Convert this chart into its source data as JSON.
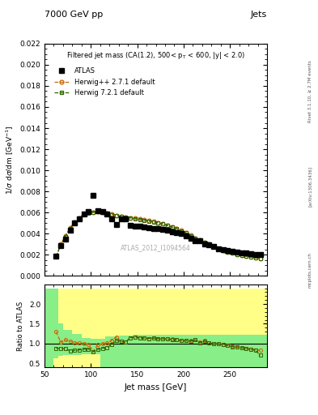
{
  "title_top": "7000 GeV pp",
  "title_right": "Jets",
  "main_title": "Filtered jet mass (CA(1.2), 500< p$_{T}$ < 600, |y| < 2.0)",
  "watermark": "ATLAS_2012_I1094564",
  "right_label_top": "Rivet 3.1.10, ≥ 2.7M events",
  "right_label_bot": "[arXiv:1306.3436]",
  "right_label_url": "mcplots.cern.ch",
  "xlabel": "Jet mass [GeV]",
  "ylabel_main": "1/σ dσ/dm [GeV⁻¹]",
  "ylabel_ratio": "Ratio to ATLAS",
  "xlim": [
    50,
    290
  ],
  "ylim_main": [
    0,
    0.022
  ],
  "ylim_ratio": [
    0.4,
    2.5
  ],
  "yticks_main": [
    0,
    0.002,
    0.004,
    0.006,
    0.008,
    0.01,
    0.012,
    0.014,
    0.016,
    0.018,
    0.02,
    0.022
  ],
  "yticks_ratio": [
    0.5,
    1.0,
    1.5,
    2.0
  ],
  "atlas_x": [
    62.5,
    67.5,
    72.5,
    77.5,
    82.5,
    87.5,
    92.5,
    97.5,
    102.5,
    107.5,
    112.5,
    117.5,
    122.5,
    127.5,
    132.5,
    137.5,
    142.5,
    147.5,
    152.5,
    157.5,
    162.5,
    167.5,
    172.5,
    177.5,
    182.5,
    187.5,
    192.5,
    197.5,
    202.5,
    207.5,
    212.5,
    217.5,
    222.5,
    227.5,
    232.5,
    237.5,
    242.5,
    247.5,
    252.5,
    257.5,
    262.5,
    267.5,
    272.5,
    277.5,
    282.5
  ],
  "atlas_y": [
    0.00185,
    0.0029,
    0.0035,
    0.0043,
    0.005,
    0.0054,
    0.0059,
    0.0061,
    0.0076,
    0.0062,
    0.0061,
    0.0059,
    0.0054,
    0.0049,
    0.0054,
    0.0054,
    0.0048,
    0.0047,
    0.0047,
    0.00465,
    0.0046,
    0.0045,
    0.0045,
    0.0044,
    0.0043,
    0.0042,
    0.0041,
    0.004,
    0.0038,
    0.0036,
    0.0033,
    0.0033,
    0.003,
    0.00295,
    0.0028,
    0.0026,
    0.0025,
    0.0024,
    0.00235,
    0.00225,
    0.0022,
    0.00215,
    0.0021,
    0.00205,
    0.002
  ],
  "hpp_x": [
    62.5,
    67.5,
    72.5,
    77.5,
    82.5,
    87.5,
    92.5,
    97.5,
    102.5,
    107.5,
    112.5,
    117.5,
    122.5,
    127.5,
    132.5,
    137.5,
    142.5,
    147.5,
    152.5,
    157.5,
    162.5,
    167.5,
    172.5,
    177.5,
    182.5,
    187.5,
    192.5,
    197.5,
    202.5,
    207.5,
    212.5,
    217.5,
    222.5,
    227.5,
    232.5,
    237.5,
    242.5,
    247.5,
    252.5,
    257.5,
    262.5,
    267.5,
    272.5,
    277.5,
    282.5
  ],
  "hpp_y": [
    0.00185,
    0.003,
    0.0038,
    0.00455,
    0.0051,
    0.0055,
    0.0059,
    0.006,
    0.00605,
    0.0061,
    0.00605,
    0.00595,
    0.00585,
    0.00575,
    0.00565,
    0.00558,
    0.00552,
    0.00545,
    0.00538,
    0.0053,
    0.00522,
    0.00514,
    0.00505,
    0.00494,
    0.0048,
    0.00465,
    0.0045,
    0.0043,
    0.0041,
    0.00385,
    0.0036,
    0.0034,
    0.0032,
    0.003,
    0.0028,
    0.0026,
    0.00245,
    0.0023,
    0.00218,
    0.00207,
    0.00197,
    0.00188,
    0.0018,
    0.00173,
    0.00166
  ],
  "h721_x": [
    62.5,
    67.5,
    72.5,
    77.5,
    82.5,
    87.5,
    92.5,
    97.5,
    102.5,
    107.5,
    112.5,
    117.5,
    122.5,
    127.5,
    132.5,
    137.5,
    142.5,
    147.5,
    152.5,
    157.5,
    162.5,
    167.5,
    172.5,
    177.5,
    182.5,
    187.5,
    192.5,
    197.5,
    202.5,
    207.5,
    212.5,
    217.5,
    222.5,
    227.5,
    232.5,
    237.5,
    242.5,
    247.5,
    252.5,
    257.5,
    262.5,
    267.5,
    272.5,
    277.5,
    282.5
  ],
  "h721_y": [
    0.00182,
    0.00295,
    0.00375,
    0.0045,
    0.00508,
    0.00548,
    0.00588,
    0.00598,
    0.00602,
    0.00607,
    0.00604,
    0.00594,
    0.00582,
    0.00572,
    0.00562,
    0.00555,
    0.0055,
    0.00543,
    0.00536,
    0.00528,
    0.0052,
    0.00512,
    0.00502,
    0.00491,
    0.00477,
    0.00462,
    0.00447,
    0.00427,
    0.00407,
    0.00382,
    0.00358,
    0.00338,
    0.00318,
    0.00298,
    0.00278,
    0.00258,
    0.00243,
    0.00228,
    0.00216,
    0.00205,
    0.00195,
    0.00186,
    0.00178,
    0.00171,
    0.00164
  ],
  "hpp_ratio": [
    1.3,
    1.03,
    1.09,
    1.06,
    1.02,
    1.02,
    1.0,
    0.98,
    0.8,
    0.98,
    0.99,
    1.01,
    1.08,
    1.17,
    1.05,
    1.03,
    1.15,
    1.16,
    1.14,
    1.14,
    1.13,
    1.14,
    1.12,
    1.12,
    1.12,
    1.11,
    1.1,
    1.08,
    1.08,
    1.07,
    1.09,
    1.03,
    1.07,
    1.02,
    1.0,
    1.0,
    0.98,
    0.96,
    0.93,
    0.92,
    0.9,
    0.88,
    0.86,
    0.84,
    0.83
  ],
  "h721_ratio": [
    0.88,
    0.87,
    0.87,
    0.82,
    0.83,
    0.84,
    0.86,
    0.86,
    0.79,
    0.85,
    0.88,
    0.9,
    0.98,
    1.08,
    1.05,
    1.04,
    1.15,
    1.17,
    1.15,
    1.14,
    1.13,
    1.14,
    1.12,
    1.12,
    1.11,
    1.1,
    1.09,
    1.07,
    1.07,
    1.06,
    1.09,
    1.02,
    1.06,
    1.01,
    0.99,
    0.99,
    0.97,
    0.95,
    0.92,
    0.91,
    0.89,
    0.87,
    0.85,
    0.83,
    0.7
  ],
  "yellow_lo": 0.4,
  "yellow_hi": 2.4,
  "green_band_edges": [
    50,
    60,
    70,
    80,
    90,
    100,
    115,
    130,
    290
  ],
  "green_band_lo": [
    0.4,
    0.65,
    0.7,
    0.72,
    0.74,
    0.74,
    0.74,
    0.74,
    0.74
  ],
  "green_band_hi": [
    2.4,
    1.55,
    1.35,
    1.25,
    1.15,
    1.12,
    1.18,
    1.22,
    1.1
  ],
  "hpp_color": "#cc6600",
  "h721_color": "#336600",
  "atlas_color": "#000000",
  "yellow_color": "#ffff88",
  "green_color": "#88ee88",
  "bg_color": "#ffffff"
}
